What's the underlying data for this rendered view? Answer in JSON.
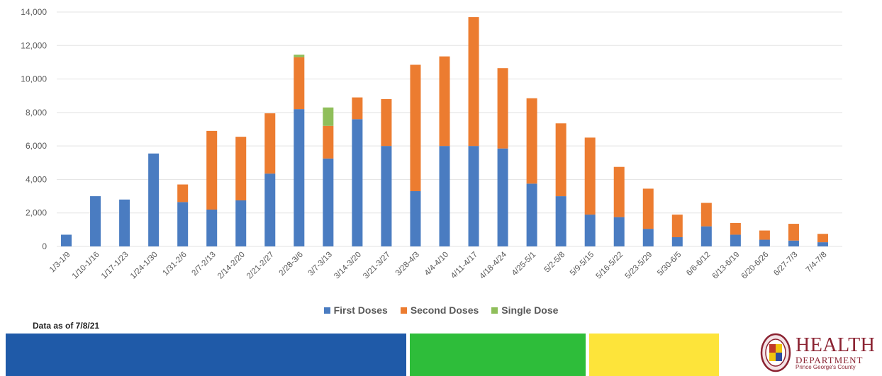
{
  "colors": {
    "first": "#4a7cc1",
    "second": "#ec7c30",
    "single": "#8fbe5a",
    "grid": "#e3e3e3",
    "band_blue": "#1f5aa8",
    "band_green": "#2ebd3a",
    "band_yellow": "#fde43a",
    "logo": "#8b2332"
  },
  "chart_data": {
    "type": "bar",
    "stacked": true,
    "title": "",
    "xlabel": "",
    "ylabel": "",
    "ylim": [
      0,
      14000
    ],
    "yticks": [
      "0",
      "2,000",
      "4,000",
      "6,000",
      "8,000",
      "10,000",
      "12,000",
      "14,000"
    ],
    "grid": true,
    "legend_position": "bottom",
    "categories": [
      "1/3-1/9",
      "1/10-1/16",
      "1/17-1/23",
      "1/24-1/30",
      "1/31-2/6",
      "2/7-2/13",
      "2/14-2/20",
      "2/21-2/27",
      "2/28-3/6",
      "3/7-3/13",
      "3/14-3/20",
      "3/21-3/27",
      "3/28-4/3",
      "4/4-4/10",
      "4/11-4/17",
      "4/18-4/24",
      "4/25-5/1",
      "5/2-5/8",
      "5/9-5/15",
      "5/16-5/22",
      "5/23-5/29",
      "5/30-6/5",
      "6/6-6/12",
      "6/13-6/19",
      "6/20-6/26",
      "6/27-7/3",
      "7/4-7/8"
    ],
    "series": [
      {
        "name": "First Doses",
        "values": [
          700,
          3000,
          2800,
          5550,
          2650,
          2200,
          2750,
          4350,
          8200,
          5250,
          7600,
          6000,
          3300,
          6000,
          6000,
          5850,
          3750,
          3000,
          1900,
          1750,
          1050,
          550,
          1200,
          700,
          400,
          350,
          250
        ]
      },
      {
        "name": "Second Doses",
        "values": [
          0,
          0,
          0,
          0,
          1050,
          4700,
          3800,
          3600,
          3100,
          1950,
          1300,
          2800,
          7550,
          5350,
          7700,
          4800,
          5100,
          4350,
          4600,
          3000,
          2400,
          1350,
          1400,
          700,
          550,
          1000,
          500
        ]
      },
      {
        "name": "Single Dose",
        "values": [
          0,
          0,
          0,
          0,
          0,
          0,
          0,
          0,
          150,
          1100,
          0,
          0,
          0,
          0,
          0,
          0,
          0,
          0,
          0,
          0,
          0,
          0,
          0,
          0,
          0,
          0,
          0
        ]
      }
    ]
  },
  "footer": {
    "data_as_of": "Data as of 7/8/21"
  },
  "logo": {
    "line1": "HEALTH",
    "line2": "DEPARTMENT",
    "line3": "Prince George's County"
  }
}
